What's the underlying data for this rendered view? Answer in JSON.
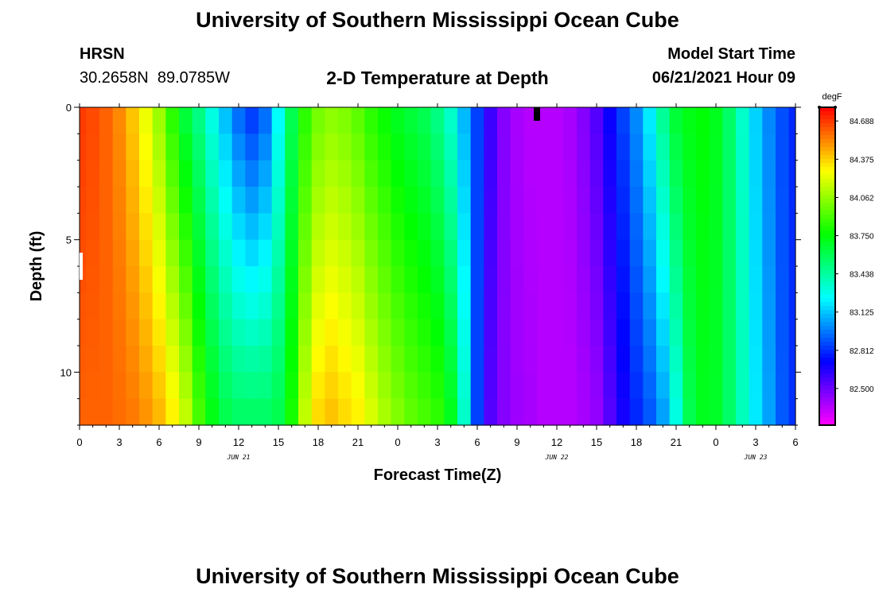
{
  "page": {
    "title_top": "University of Southern Mississippi Ocean Cube",
    "title_bottom": "University of Southern Mississippi Ocean Cube",
    "station_code": "HRSN",
    "station_coords": "30.2658N  89.0785W",
    "model_start_label": "Model Start Time",
    "model_start_value": "06/21/2021 Hour 09"
  },
  "chart_data": {
    "type": "heatmap",
    "title": "2-D Temperature at Depth",
    "xlabel": "Forecast Time(Z)",
    "ylabel": "Depth (ft)",
    "x_hours": [
      0,
      54
    ],
    "x_tick_labels": [
      "0",
      "3",
      "6",
      "9",
      "12",
      "15",
      "18",
      "21",
      "0",
      "3",
      "6",
      "9",
      "12",
      "15",
      "18",
      "21",
      "0",
      "3",
      "6"
    ],
    "x_tick_hours": [
      0,
      3,
      6,
      9,
      12,
      15,
      18,
      21,
      24,
      27,
      30,
      33,
      36,
      39,
      42,
      45,
      48,
      51,
      54
    ],
    "date_labels": [
      {
        "label": "JUN 21",
        "hour": 12
      },
      {
        "label": "JUN 22",
        "hour": 36
      },
      {
        "label": "JUN 23",
        "hour": 51
      }
    ],
    "y_ticks": [
      0,
      5,
      10
    ],
    "y_tick_labels": [
      "0",
      "5",
      "10"
    ],
    "ylim": [
      0,
      12
    ],
    "colorbar": {
      "unit": "degF",
      "min": 82.2,
      "max": 84.8,
      "labels": [
        "84.688",
        "84.375",
        "84.062",
        "83.750",
        "83.438",
        "83.125",
        "82.812",
        "82.500"
      ]
    },
    "time_hours": [
      0,
      1,
      2,
      3,
      4,
      5,
      6,
      7,
      8,
      9,
      10,
      11,
      12,
      13,
      14,
      15,
      16,
      17,
      18,
      19,
      20,
      21,
      22,
      23,
      24,
      25,
      26,
      27,
      28,
      29,
      30,
      31,
      32,
      33,
      34,
      35,
      36,
      37,
      38,
      39,
      40,
      41,
      42,
      43,
      44,
      45,
      46,
      47,
      48,
      49,
      50,
      51,
      52,
      53,
      54
    ],
    "depth_rows_ft": [
      0,
      1,
      2,
      3,
      4,
      5,
      6,
      7,
      8,
      9,
      10,
      11
    ],
    "surface_profile_degF": [
      84.68,
      84.65,
      84.6,
      84.52,
      84.4,
      84.25,
      84.08,
      83.85,
      83.65,
      83.5,
      83.3,
      83.12,
      82.95,
      82.85,
      82.95,
      83.25,
      83.6,
      83.85,
      84.0,
      84.05,
      84.02,
      83.95,
      83.85,
      83.78,
      83.7,
      83.65,
      83.6,
      83.5,
      83.35,
      83.1,
      82.85,
      82.6,
      82.45,
      82.38,
      82.35,
      82.35,
      82.35,
      82.38,
      82.45,
      82.55,
      82.7,
      82.85,
      83.0,
      83.2,
      83.45,
      83.65,
      83.72,
      83.75,
      83.7,
      83.55,
      83.35,
      83.15,
      83.0,
      82.88,
      82.8
    ],
    "bottom_profile_degF": [
      84.6,
      84.6,
      84.6,
      84.58,
      84.55,
      84.5,
      84.42,
      84.3,
      84.15,
      83.9,
      83.72,
      83.6,
      83.55,
      83.55,
      83.55,
      83.6,
      83.8,
      84.15,
      84.35,
      84.4,
      84.35,
      84.3,
      84.2,
      84.1,
      84.02,
      83.95,
      83.9,
      83.85,
      83.7,
      83.35,
      82.85,
      82.55,
      82.45,
      82.4,
      82.38,
      82.35,
      82.35,
      82.35,
      82.38,
      82.42,
      82.55,
      82.68,
      82.8,
      82.9,
      83.05,
      83.3,
      83.6,
      83.7,
      83.68,
      83.55,
      83.38,
      83.2,
      83.05,
      82.9,
      82.82
    ]
  }
}
